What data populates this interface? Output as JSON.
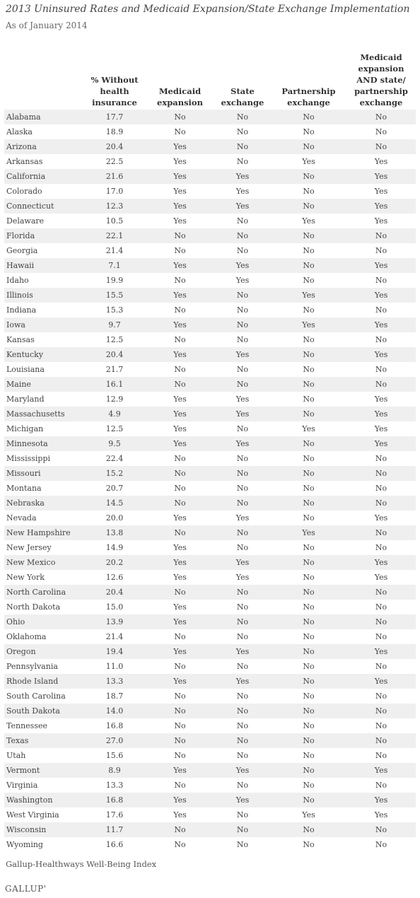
{
  "title": "2013 Uninsured Rates and Medicaid Expansion/State Exchange Implementation",
  "subtitle": "As of January 2014",
  "columns": [
    "",
    "% Without health insurance",
    "Medicaid expansion",
    "State exchange",
    "Partnership exchange",
    "Medicaid expansion AND state/ partnership exchange"
  ],
  "rows": [
    [
      "Alabama",
      "17.7",
      "No",
      "No",
      "No",
      "No"
    ],
    [
      "Alaska",
      "18.9",
      "No",
      "No",
      "No",
      "No"
    ],
    [
      "Arizona",
      "20.4",
      "Yes",
      "No",
      "No",
      "No"
    ],
    [
      "Arkansas",
      "22.5",
      "Yes",
      "No",
      "Yes",
      "Yes"
    ],
    [
      "California",
      "21.6",
      "Yes",
      "Yes",
      "No",
      "Yes"
    ],
    [
      "Colorado",
      "17.0",
      "Yes",
      "Yes",
      "No",
      "Yes"
    ],
    [
      "Connecticut",
      "12.3",
      "Yes",
      "Yes",
      "No",
      "Yes"
    ],
    [
      "Delaware",
      "10.5",
      "Yes",
      "No",
      "Yes",
      "Yes"
    ],
    [
      "Florida",
      "22.1",
      "No",
      "No",
      "No",
      "No"
    ],
    [
      "Georgia",
      "21.4",
      "No",
      "No",
      "No",
      "No"
    ],
    [
      "Hawaii",
      "7.1",
      "Yes",
      "Yes",
      "No",
      "Yes"
    ],
    [
      "Idaho",
      "19.9",
      "No",
      "Yes",
      "No",
      "No"
    ],
    [
      "Illinois",
      "15.5",
      "Yes",
      "No",
      "Yes",
      "Yes"
    ],
    [
      "Indiana",
      "15.3",
      "No",
      "No",
      "No",
      "No"
    ],
    [
      "Iowa",
      "9.7",
      "Yes",
      "No",
      "Yes",
      "Yes"
    ],
    [
      "Kansas",
      "12.5",
      "No",
      "No",
      "No",
      "No"
    ],
    [
      "Kentucky",
      "20.4",
      "Yes",
      "Yes",
      "No",
      "Yes"
    ],
    [
      "Louisiana",
      "21.7",
      "No",
      "No",
      "No",
      "No"
    ],
    [
      "Maine",
      "16.1",
      "No",
      "No",
      "No",
      "No"
    ],
    [
      "Maryland",
      "12.9",
      "Yes",
      "Yes",
      "No",
      "Yes"
    ],
    [
      "Massachusetts",
      "4.9",
      "Yes",
      "Yes",
      "No",
      "Yes"
    ],
    [
      "Michigan",
      "12.5",
      "Yes",
      "No",
      "Yes",
      "Yes"
    ],
    [
      "Minnesota",
      "9.5",
      "Yes",
      "Yes",
      "No",
      "Yes"
    ],
    [
      "Mississippi",
      "22.4",
      "No",
      "No",
      "No",
      "No"
    ],
    [
      "Missouri",
      "15.2",
      "No",
      "No",
      "No",
      "No"
    ],
    [
      "Montana",
      "20.7",
      "No",
      "No",
      "No",
      "No"
    ],
    [
      "Nebraska",
      "14.5",
      "No",
      "No",
      "No",
      "No"
    ],
    [
      "Nevada",
      "20.0",
      "Yes",
      "Yes",
      "No",
      "Yes"
    ],
    [
      "New Hampshire",
      "13.8",
      "No",
      "No",
      "Yes",
      "No"
    ],
    [
      "New Jersey",
      "14.9",
      "Yes",
      "No",
      "No",
      "No"
    ],
    [
      "New Mexico",
      "20.2",
      "Yes",
      "Yes",
      "No",
      "Yes"
    ],
    [
      "New York",
      "12.6",
      "Yes",
      "Yes",
      "No",
      "Yes"
    ],
    [
      "North Carolina",
      "20.4",
      "No",
      "No",
      "No",
      "No"
    ],
    [
      "North Dakota",
      "15.0",
      "Yes",
      "No",
      "No",
      "No"
    ],
    [
      "Ohio",
      "13.9",
      "Yes",
      "No",
      "No",
      "No"
    ],
    [
      "Oklahoma",
      "21.4",
      "No",
      "No",
      "No",
      "No"
    ],
    [
      "Oregon",
      "19.4",
      "Yes",
      "Yes",
      "No",
      "Yes"
    ],
    [
      "Pennsylvania",
      "11.0",
      "No",
      "No",
      "No",
      "No"
    ],
    [
      "Rhode Island",
      "13.3",
      "Yes",
      "Yes",
      "No",
      "Yes"
    ],
    [
      "South Carolina",
      "18.7",
      "No",
      "No",
      "No",
      "No"
    ],
    [
      "South Dakota",
      "14.0",
      "No",
      "No",
      "No",
      "No"
    ],
    [
      "Tennessee",
      "16.8",
      "No",
      "No",
      "No",
      "No"
    ],
    [
      "Texas",
      "27.0",
      "No",
      "No",
      "No",
      "No"
    ],
    [
      "Utah",
      "15.6",
      "No",
      "No",
      "No",
      "No"
    ],
    [
      "Vermont",
      "8.9",
      "Yes",
      "Yes",
      "No",
      "Yes"
    ],
    [
      "Virginia",
      "13.3",
      "No",
      "No",
      "No",
      "No"
    ],
    [
      "Washington",
      "16.8",
      "Yes",
      "Yes",
      "No",
      "Yes"
    ],
    [
      "West Virginia",
      "17.6",
      "Yes",
      "No",
      "Yes",
      "Yes"
    ],
    [
      "Wisconsin",
      "11.7",
      "No",
      "No",
      "No",
      "No"
    ],
    [
      "Wyoming",
      "16.6",
      "No",
      "No",
      "No",
      "No"
    ]
  ],
  "source": "Gallup-Healthways Well-Being Index",
  "logo": "GALLUP'"
}
